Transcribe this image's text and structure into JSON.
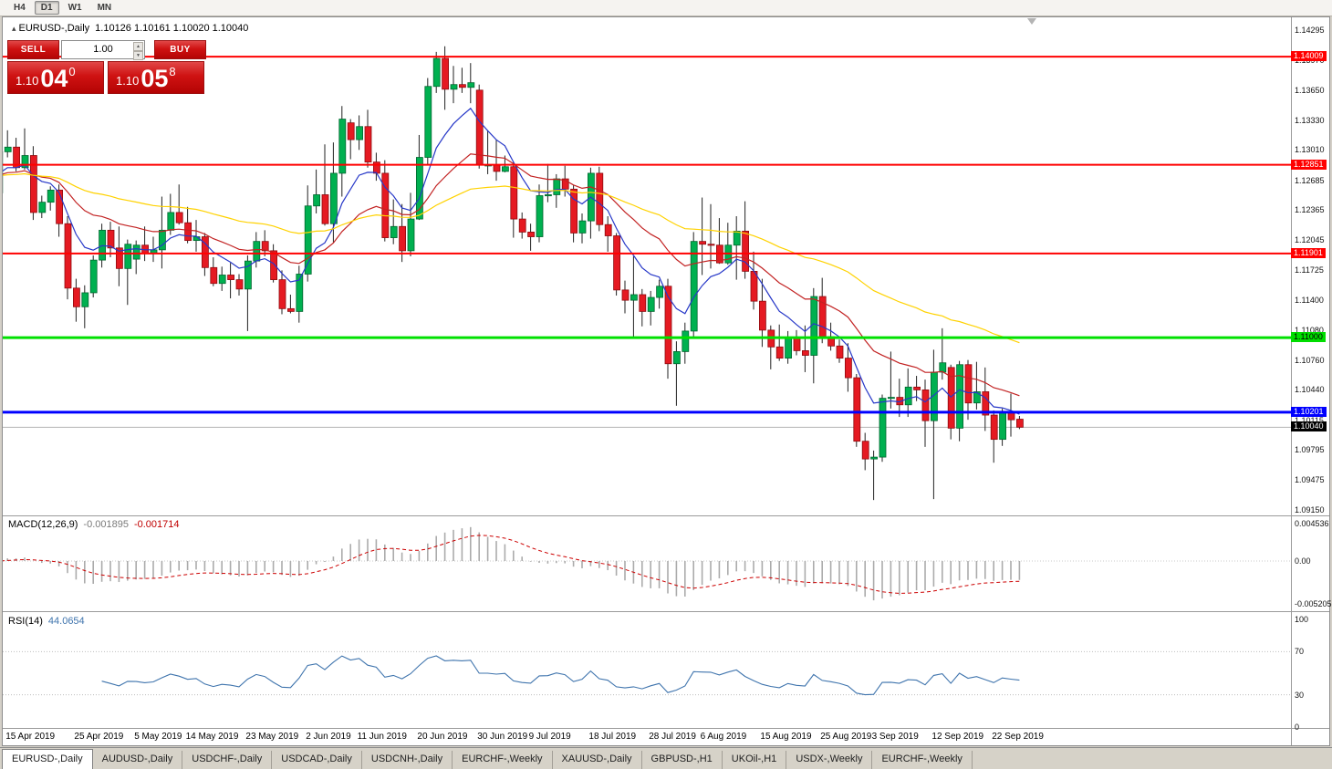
{
  "toolbar": {
    "timeframes": [
      {
        "label": "H4",
        "active": false
      },
      {
        "label": "D1",
        "active": true
      },
      {
        "label": "W1",
        "active": false
      },
      {
        "label": "MN",
        "active": false
      }
    ]
  },
  "chart": {
    "collapse_icon": "▴",
    "title": "EURUSD-,Daily",
    "ohlc_readout": "1.10126 1.10161 1.10020 1.10040",
    "trade_panel": {
      "sell_label": "SELL",
      "buy_label": "BUY",
      "volume_value": "1.00",
      "sell_price_main": "1.10",
      "sell_price_big": "04",
      "sell_price_sup": "0",
      "buy_price_main": "1.10",
      "buy_price_big": "05",
      "buy_price_sup": "8"
    },
    "price_axis_labels": [
      "1.14295",
      "1.13970",
      "1.13650",
      "1.13330",
      "1.13010",
      "1.12685",
      "1.12365",
      "1.12045",
      "1.11725",
      "1.11400",
      "1.11080",
      "1.10760",
      "1.10440",
      "1.10115",
      "1.09795",
      "1.09475",
      "1.09150"
    ],
    "line_labels": [
      {
        "text": "1.14009",
        "price": 1.14009,
        "bg": "#ff0000",
        "fg": "#ffffff"
      },
      {
        "text": "1.12851",
        "price": 1.12851,
        "bg": "#ff0000",
        "fg": "#ffffff"
      },
      {
        "text": "1.11901",
        "price": 1.11901,
        "bg": "#ff0000",
        "fg": "#ffffff"
      },
      {
        "text": "1.11000",
        "price": 1.11,
        "bg": "#00dd00",
        "fg": "#000000"
      },
      {
        "text": "1.10201",
        "price": 1.10201,
        "bg": "#0000ff",
        "fg": "#ffffff"
      },
      {
        "text": "1.10040",
        "price": 1.1004,
        "bg": "#000000",
        "fg": "#ffffff"
      }
    ],
    "hlines": [
      {
        "price": 1.14009,
        "color": "#ff0000",
        "width": 2
      },
      {
        "price": 1.12851,
        "color": "#ff0000",
        "width": 2
      },
      {
        "price": 1.11901,
        "color": "#ff0000",
        "width": 2
      },
      {
        "price": 1.11,
        "color": "#00e000",
        "width": 3
      },
      {
        "price": 1.10201,
        "color": "#0000ff",
        "width": 3
      }
    ],
    "bid_line": {
      "price": 1.1004,
      "color": "#b2b2b2"
    },
    "date_labels": [
      {
        "t": "15 Apr 2019",
        "i": 3
      },
      {
        "t": "25 Apr 2019",
        "i": 11
      },
      {
        "t": "5 May 2019",
        "i": 18
      },
      {
        "t": "14 May 2019",
        "i": 24
      },
      {
        "t": "23 May 2019",
        "i": 31
      },
      {
        "t": "2 Jun 2019",
        "i": 38
      },
      {
        "t": "11 Jun 2019",
        "i": 44
      },
      {
        "t": "20 Jun 2019",
        "i": 51
      },
      {
        "t": "30 Jun 2019",
        "i": 58
      },
      {
        "t": "9 Jul 2019",
        "i": 64
      },
      {
        "t": "18 Jul 2019",
        "i": 71
      },
      {
        "t": "28 Jul 2019",
        "i": 78
      },
      {
        "t": "6 Aug 2019",
        "i": 84
      },
      {
        "t": "15 Aug 2019",
        "i": 91
      },
      {
        "t": "25 Aug 2019",
        "i": 98
      },
      {
        "t": "3 Sep 2019",
        "i": 104
      },
      {
        "t": "12 Sep 2019",
        "i": 111
      },
      {
        "t": "22 Sep 2019",
        "i": 118
      }
    ]
  },
  "macd": {
    "name": "MACD(12,26,9)",
    "value1": "-0.001895",
    "value2": "-0.001714",
    "axis": [
      {
        "text": "0.004536",
        "v": 0.004536
      },
      {
        "text": "0.00",
        "v": 0
      },
      {
        "text": "-0.005205",
        "v": -0.005205
      }
    ],
    "params": {
      "fast": 12,
      "slow": 26,
      "signal": 9
    },
    "hist_color": "#ababab",
    "signal_color": "#cc0000"
  },
  "rsi": {
    "name": "RSI(14)",
    "value": "44.0654",
    "period": 14,
    "axis": [
      100,
      70,
      30,
      0
    ],
    "levels": [
      70,
      30
    ],
    "color": "#3f74ad"
  },
  "tabs": [
    {
      "label": "EURUSD-,Daily",
      "active": true
    },
    {
      "label": "AUDUSD-,Daily",
      "active": false
    },
    {
      "label": "USDCHF-,Daily",
      "active": false
    },
    {
      "label": "USDCAD-,Daily",
      "active": false
    },
    {
      "label": "USDCNH-,Daily",
      "active": false
    },
    {
      "label": "EURCHF-,Weekly",
      "active": false
    },
    {
      "label": "XAUUSD-,Daily",
      "active": false
    },
    {
      "label": "GBPUSD-,H1",
      "active": false
    },
    {
      "label": "UKOil-,H1",
      "active": false
    },
    {
      "label": "USDX-,Weekly",
      "active": false
    },
    {
      "label": "EURCHF-,Weekly",
      "active": false
    }
  ],
  "chart_data": {
    "type": "candlestick",
    "symbol": "EURUSD-",
    "timeframe": "Daily",
    "up_color": "#00b050",
    "down_color": "#e51a22",
    "up_border": "#00662e",
    "down_border": "#8e0a0e",
    "wick_color": "#222222",
    "mas": [
      {
        "period": 8,
        "color": "#2738c8"
      },
      {
        "period": 21,
        "color": "#c22222"
      },
      {
        "period": 55,
        "color": "#ffd200"
      }
    ],
    "candles": [
      [
        1.1263,
        1.1288,
        1.1253,
        1.1273
      ],
      [
        1.1273,
        1.1287,
        1.1248,
        1.1255
      ],
      [
        1.1255,
        1.1317,
        1.1253,
        1.1299
      ],
      [
        1.1299,
        1.1322,
        1.1293,
        1.1304
      ],
      [
        1.1304,
        1.1314,
        1.1278,
        1.1282
      ],
      [
        1.1282,
        1.1324,
        1.128,
        1.1295
      ],
      [
        1.1295,
        1.1305,
        1.1226,
        1.1234
      ],
      [
        1.1234,
        1.1252,
        1.1228,
        1.1245
      ],
      [
        1.1245,
        1.1262,
        1.1236,
        1.1258
      ],
      [
        1.1258,
        1.1264,
        1.1208,
        1.1222
      ],
      [
        1.1222,
        1.123,
        1.1141,
        1.1153
      ],
      [
        1.1153,
        1.1163,
        1.1117,
        1.1133
      ],
      [
        1.1133,
        1.1156,
        1.111,
        1.1148
      ],
      [
        1.1148,
        1.1188,
        1.1143,
        1.1183
      ],
      [
        1.1183,
        1.1222,
        1.1175,
        1.1215
      ],
      [
        1.1215,
        1.1224,
        1.1186,
        1.1196
      ],
      [
        1.1196,
        1.1219,
        1.1155,
        1.1174
      ],
      [
        1.1174,
        1.1205,
        1.1135,
        1.12
      ],
      [
        1.1184,
        1.1204,
        1.1168,
        1.1199
      ],
      [
        1.1199,
        1.1219,
        1.1182,
        1.119
      ],
      [
        1.119,
        1.1208,
        1.1181,
        1.1194
      ],
      [
        1.1194,
        1.1251,
        1.1174,
        1.1215
      ],
      [
        1.1215,
        1.1254,
        1.121,
        1.1234
      ],
      [
        1.1234,
        1.1264,
        1.1221,
        1.1223
      ],
      [
        1.1223,
        1.124,
        1.1201,
        1.1204
      ],
      [
        1.1204,
        1.1226,
        1.1192,
        1.1208
      ],
      [
        1.1208,
        1.1212,
        1.1166,
        1.1175
      ],
      [
        1.1175,
        1.1186,
        1.1155,
        1.1158
      ],
      [
        1.1158,
        1.1176,
        1.115,
        1.1167
      ],
      [
        1.1167,
        1.118,
        1.1142,
        1.1162
      ],
      [
        1.1162,
        1.1168,
        1.1145,
        1.1152
      ],
      [
        1.1152,
        1.1188,
        1.1107,
        1.1182
      ],
      [
        1.1182,
        1.1213,
        1.1175,
        1.1203
      ],
      [
        1.1203,
        1.1215,
        1.1187,
        1.1193
      ],
      [
        1.1193,
        1.12,
        1.1159,
        1.1162
      ],
      [
        1.1162,
        1.1172,
        1.1125,
        1.1131
      ],
      [
        1.1131,
        1.1146,
        1.1126,
        1.1128
      ],
      [
        1.1128,
        1.1177,
        1.1116,
        1.1168
      ],
      [
        1.1168,
        1.1263,
        1.116,
        1.1241
      ],
      [
        1.1241,
        1.128,
        1.1233,
        1.1253
      ],
      [
        1.1253,
        1.1307,
        1.122,
        1.1222
      ],
      [
        1.1222,
        1.1309,
        1.1202,
        1.1276
      ],
      [
        1.1276,
        1.1348,
        1.1251,
        1.1334
      ],
      [
        1.133,
        1.1334,
        1.1291,
        1.1312
      ],
      [
        1.1312,
        1.1338,
        1.1301,
        1.1326
      ],
      [
        1.1326,
        1.1344,
        1.1282,
        1.1288
      ],
      [
        1.1288,
        1.1298,
        1.1268,
        1.1276
      ],
      [
        1.1276,
        1.129,
        1.1203,
        1.1207
      ],
      [
        1.1207,
        1.1248,
        1.12,
        1.1219
      ],
      [
        1.1219,
        1.1243,
        1.1181,
        1.1193
      ],
      [
        1.1193,
        1.1255,
        1.1187,
        1.1227
      ],
      [
        1.1227,
        1.1317,
        1.1226,
        1.1293
      ],
      [
        1.1293,
        1.1378,
        1.1285,
        1.1369
      ],
      [
        1.1369,
        1.1406,
        1.1362,
        1.1399
      ],
      [
        1.1399,
        1.1412,
        1.1344,
        1.1366
      ],
      [
        1.1366,
        1.1391,
        1.1351,
        1.1371
      ],
      [
        1.1371,
        1.1389,
        1.1362,
        1.1368
      ],
      [
        1.1368,
        1.1394,
        1.1351,
        1.1373
      ],
      [
        1.1365,
        1.1371,
        1.1281,
        1.1285
      ],
      [
        1.1285,
        1.1322,
        1.1275,
        1.1285
      ],
      [
        1.1285,
        1.1312,
        1.1268,
        1.1278
      ],
      [
        1.1278,
        1.1295,
        1.1277,
        1.1283
      ],
      [
        1.1283,
        1.1288,
        1.1207,
        1.1227
      ],
      [
        1.1227,
        1.1234,
        1.1206,
        1.1213
      ],
      [
        1.1213,
        1.1222,
        1.1193,
        1.1208
      ],
      [
        1.1208,
        1.1264,
        1.1202,
        1.1252
      ],
      [
        1.1252,
        1.1286,
        1.1245,
        1.1253
      ],
      [
        1.1253,
        1.1275,
        1.1239,
        1.127
      ],
      [
        1.127,
        1.1284,
        1.1251,
        1.1259
      ],
      [
        1.1259,
        1.1263,
        1.1202,
        1.1212
      ],
      [
        1.1212,
        1.1233,
        1.1201,
        1.1225
      ],
      [
        1.1225,
        1.1282,
        1.1206,
        1.1276
      ],
      [
        1.1276,
        1.1283,
        1.1214,
        1.1221
      ],
      [
        1.1221,
        1.123,
        1.1192,
        1.1209
      ],
      [
        1.1209,
        1.1212,
        1.1145,
        1.1151
      ],
      [
        1.1151,
        1.1161,
        1.1126,
        1.114
      ],
      [
        1.114,
        1.1187,
        1.1101,
        1.1146
      ],
      [
        1.1146,
        1.1152,
        1.1112,
        1.1128
      ],
      [
        1.1128,
        1.115,
        1.1113,
        1.1143
      ],
      [
        1.1143,
        1.1162,
        1.1131,
        1.1155
      ],
      [
        1.1155,
        1.1163,
        1.1056,
        1.1072
      ],
      [
        1.1072,
        1.1096,
        1.1027,
        1.1085
      ],
      [
        1.1085,
        1.1116,
        1.1072,
        1.1107
      ],
      [
        1.1107,
        1.1213,
        1.1101,
        1.1203
      ],
      [
        1.1203,
        1.125,
        1.1167,
        1.12
      ],
      [
        1.12,
        1.1243,
        1.1174,
        1.1199
      ],
      [
        1.1199,
        1.1228,
        1.1179,
        1.118
      ],
      [
        1.118,
        1.1223,
        1.1178,
        1.1199
      ],
      [
        1.1199,
        1.123,
        1.1162,
        1.1214
      ],
      [
        1.1214,
        1.1246,
        1.1163,
        1.1171
      ],
      [
        1.1171,
        1.1192,
        1.113,
        1.1139
      ],
      [
        1.1139,
        1.1163,
        1.109,
        1.1108
      ],
      [
        1.1108,
        1.1113,
        1.1066,
        1.109
      ],
      [
        1.109,
        1.1114,
        1.1075,
        1.1078
      ],
      [
        1.1078,
        1.1107,
        1.1072,
        1.11
      ],
      [
        1.11,
        1.1108,
        1.1081,
        1.1086
      ],
      [
        1.1086,
        1.1113,
        1.1063,
        1.1081
      ],
      [
        1.1081,
        1.1153,
        1.1051,
        1.1144
      ],
      [
        1.1144,
        1.1164,
        1.1094,
        1.1101
      ],
      [
        1.1101,
        1.1116,
        1.1086,
        1.1091
      ],
      [
        1.1091,
        1.1098,
        1.1073,
        1.1078
      ],
      [
        1.1078,
        1.1094,
        1.1042,
        1.1057
      ],
      [
        1.1057,
        1.1061,
        1.0983,
        1.0989
      ],
      [
        1.0989,
        1.0998,
        1.0958,
        1.097
      ],
      [
        1.097,
        1.0979,
        1.0926,
        1.0972
      ],
      [
        1.0972,
        1.1039,
        1.0967,
        1.1035
      ],
      [
        1.1035,
        1.1085,
        1.1024,
        1.1036
      ],
      [
        1.1036,
        1.1056,
        1.1015,
        1.1028
      ],
      [
        1.1028,
        1.1067,
        1.1015,
        1.1047
      ],
      [
        1.1047,
        1.1059,
        1.1032,
        1.1044
      ],
      [
        1.1044,
        1.1055,
        1.0983,
        1.1011
      ],
      [
        1.1011,
        1.1087,
        1.0927,
        1.1063
      ],
      [
        1.1063,
        1.111,
        1.1055,
        1.1073
      ],
      [
        1.1068,
        1.1071,
        1.0991,
        1.1003
      ],
      [
        1.1003,
        1.1075,
        1.0989,
        1.1071
      ],
      [
        1.1071,
        1.1076,
        1.1012,
        1.103
      ],
      [
        1.103,
        1.1074,
        1.1023,
        1.1042
      ],
      [
        1.1042,
        1.1068,
        1.1,
        1.1017
      ],
      [
        1.1017,
        1.1022,
        1.0966,
        1.0991
      ],
      [
        1.0991,
        1.1024,
        1.0984,
        1.1021
      ],
      [
        1.1021,
        1.104,
        1.0994,
        1.1012
      ],
      [
        1.10126,
        1.10161,
        1.1002,
        1.1004
      ]
    ]
  }
}
